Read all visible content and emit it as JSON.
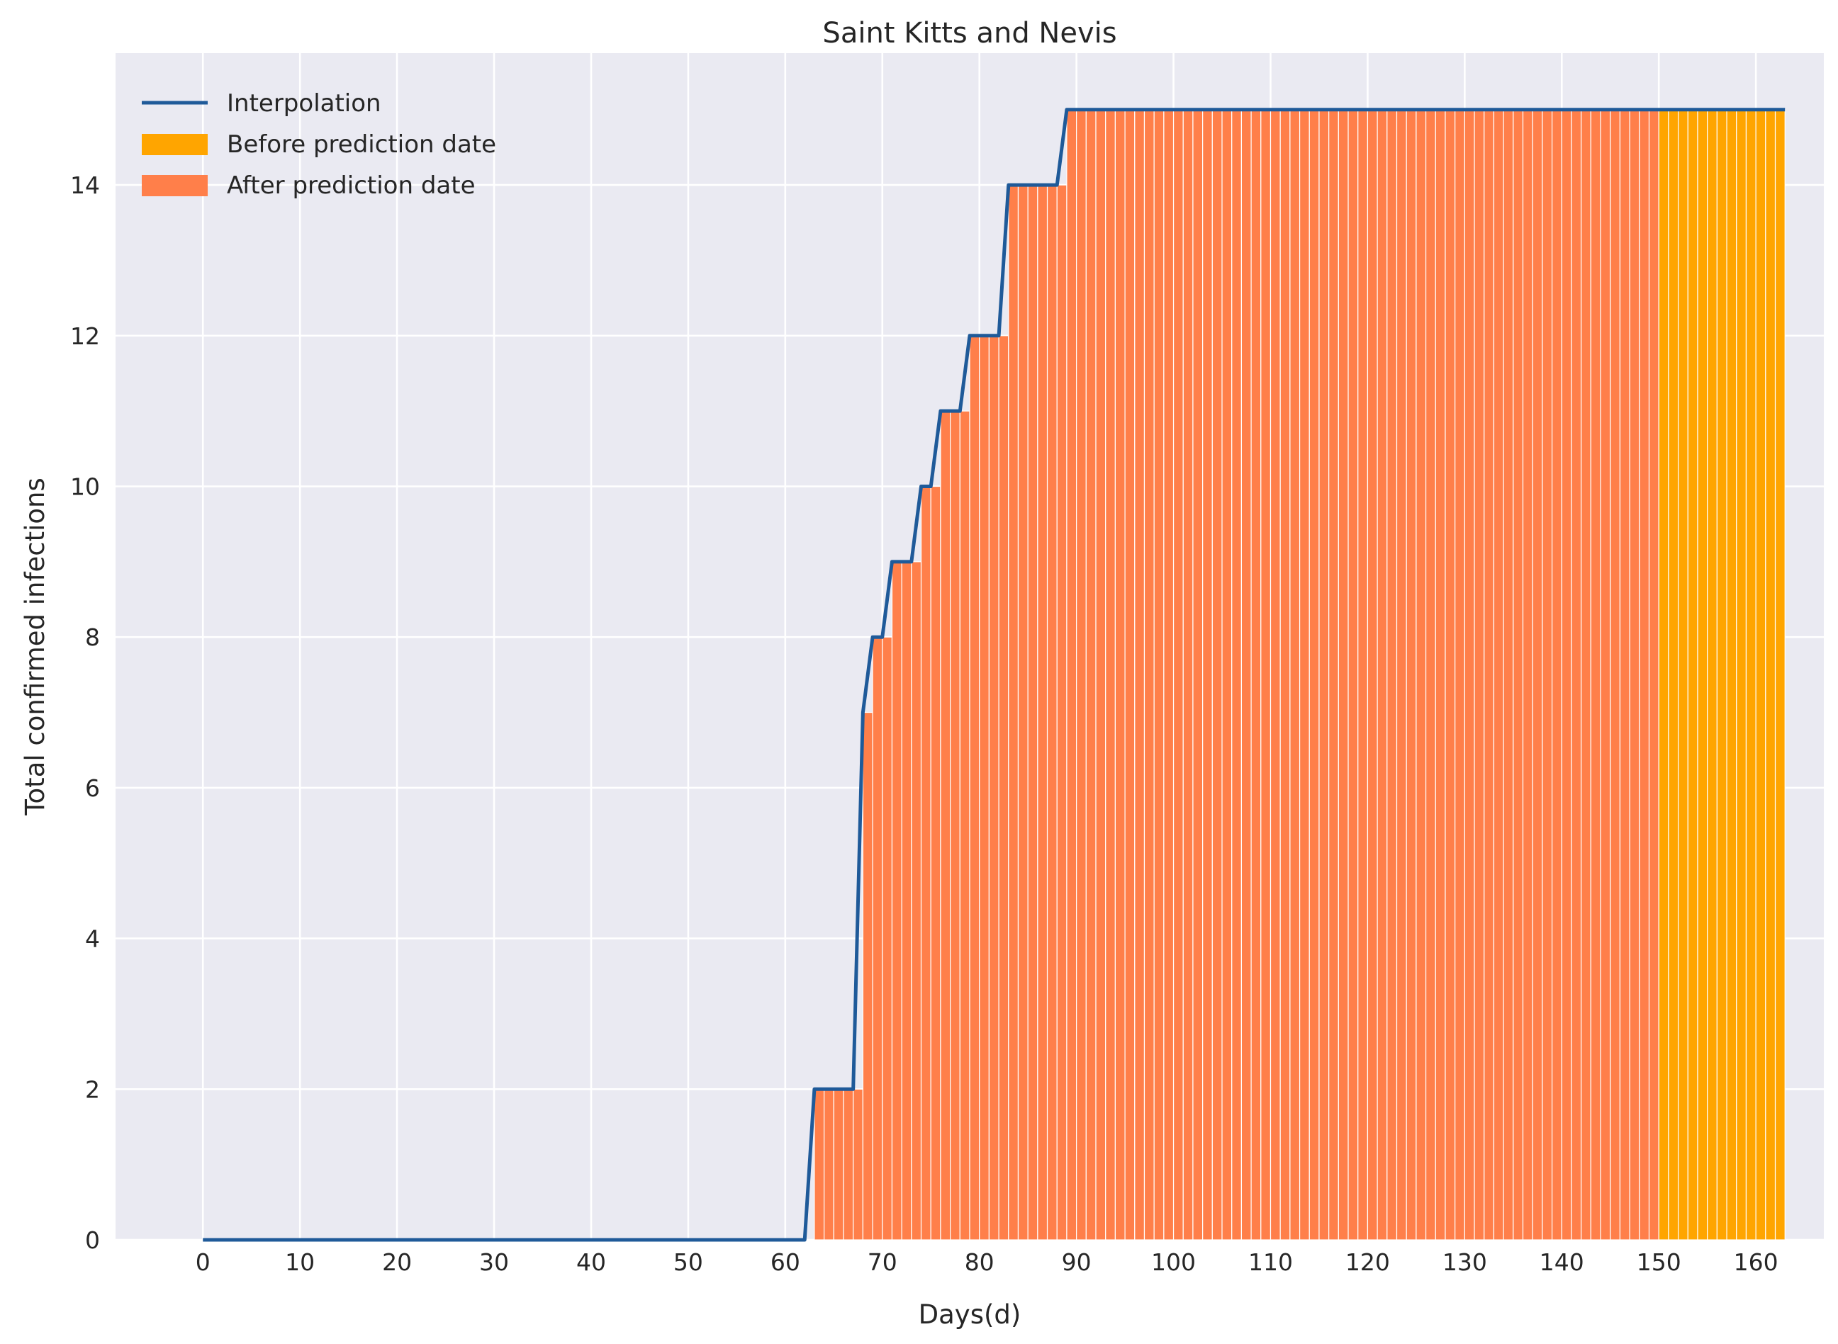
{
  "chart_data": {
    "type": "bar",
    "title": "Saint Kitts and Nevis",
    "xlabel": "Days(d)",
    "ylabel": "Total confirmed infections",
    "xlim": [
      -9,
      167
    ],
    "ylim": [
      0,
      15.75
    ],
    "x_ticks": [
      0,
      10,
      20,
      30,
      40,
      50,
      60,
      70,
      80,
      90,
      100,
      110,
      120,
      130,
      140,
      150,
      160
    ],
    "y_ticks": [
      0,
      2,
      4,
      6,
      8,
      10,
      12,
      14
    ],
    "grid": true,
    "legend_position": "top-left",
    "prediction_split_day": 150,
    "colors": {
      "background": "#eaeaf2",
      "grid": "#ffffff",
      "interpolation": "#1f5a99",
      "before_prediction": "#ffa500",
      "after_prediction": "#ff7f4a"
    },
    "legend": [
      {
        "label": "Interpolation",
        "kind": "line",
        "color": "#1f5a99"
      },
      {
        "label": "Before prediction date",
        "kind": "patch",
        "color": "#ffa500"
      },
      {
        "label": "After prediction date",
        "kind": "patch",
        "color": "#ff7f4a"
      }
    ],
    "series": [
      {
        "name": "Interpolation",
        "kind": "step-line",
        "points": [
          [
            0,
            0
          ],
          [
            62,
            0
          ],
          [
            63,
            2
          ],
          [
            67,
            2
          ],
          [
            68,
            7
          ],
          [
            69,
            8
          ],
          [
            70,
            8
          ],
          [
            71,
            9
          ],
          [
            73,
            9
          ],
          [
            74,
            10
          ],
          [
            75,
            10
          ],
          [
            76,
            11
          ],
          [
            78,
            11
          ],
          [
            79,
            12
          ],
          [
            82,
            12
          ],
          [
            83,
            14
          ],
          [
            88,
            14
          ],
          [
            89,
            15
          ],
          [
            163,
            15
          ]
        ]
      }
    ]
  }
}
